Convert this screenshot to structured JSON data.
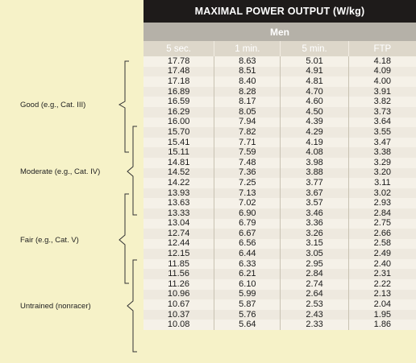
{
  "table": {
    "title": "MAXIMAL POWER OUTPUT (W/kg)",
    "group": "Men",
    "columns": [
      "5 sec.",
      "1 min.",
      "5 min.",
      "FTP"
    ],
    "rows": [
      [
        "17.78",
        "8.63",
        "5.01",
        "4.18"
      ],
      [
        "17.48",
        "8.51",
        "4.91",
        "4.09"
      ],
      [
        "17.18",
        "8.40",
        "4.81",
        "4.00"
      ],
      [
        "16.89",
        "8.28",
        "4.70",
        "3.91"
      ],
      [
        "16.59",
        "8.17",
        "4.60",
        "3.82"
      ],
      [
        "16.29",
        "8.05",
        "4.50",
        "3.73"
      ],
      [
        "16.00",
        "7.94",
        "4.39",
        "3.64"
      ],
      [
        "15.70",
        "7.82",
        "4.29",
        "3.55"
      ],
      [
        "15.41",
        "7.71",
        "4.19",
        "3.47"
      ],
      [
        "15.11",
        "7.59",
        "4.08",
        "3.38"
      ],
      [
        "14.81",
        "7.48",
        "3.98",
        "3.29"
      ],
      [
        "14.52",
        "7.36",
        "3.88",
        "3.20"
      ],
      [
        "14.22",
        "7.25",
        "3.77",
        "3.11"
      ],
      [
        "13.93",
        "7.13",
        "3.67",
        "3.02"
      ],
      [
        "13.63",
        "7.02",
        "3.57",
        "2.93"
      ],
      [
        "13.33",
        "6.90",
        "3.46",
        "2.84"
      ],
      [
        "13.04",
        "6.79",
        "3.36",
        "2.75"
      ],
      [
        "12.74",
        "6.67",
        "3.26",
        "2.66"
      ],
      [
        "12.44",
        "6.56",
        "3.15",
        "2.58"
      ],
      [
        "12.15",
        "6.44",
        "3.05",
        "2.49"
      ],
      [
        "11.85",
        "6.33",
        "2.95",
        "2.40"
      ],
      [
        "11.56",
        "6.21",
        "2.84",
        "2.31"
      ],
      [
        "11.26",
        "6.10",
        "2.74",
        "2.22"
      ],
      [
        "10.96",
        "5.99",
        "2.64",
        "2.13"
      ],
      [
        "10.67",
        "5.87",
        "2.53",
        "2.04"
      ],
      [
        "10.37",
        "5.76",
        "2.43",
        "1.95"
      ],
      [
        "10.08",
        "5.64",
        "2.33",
        "1.86"
      ]
    ]
  },
  "categories": [
    {
      "label": "Good (e.g., Cat. III)"
    },
    {
      "label": "Moderate (e.g., Cat. IV)"
    },
    {
      "label": "Fair (e.g., Cat. V)"
    },
    {
      "label": "Untrained (nonracer)"
    }
  ]
}
